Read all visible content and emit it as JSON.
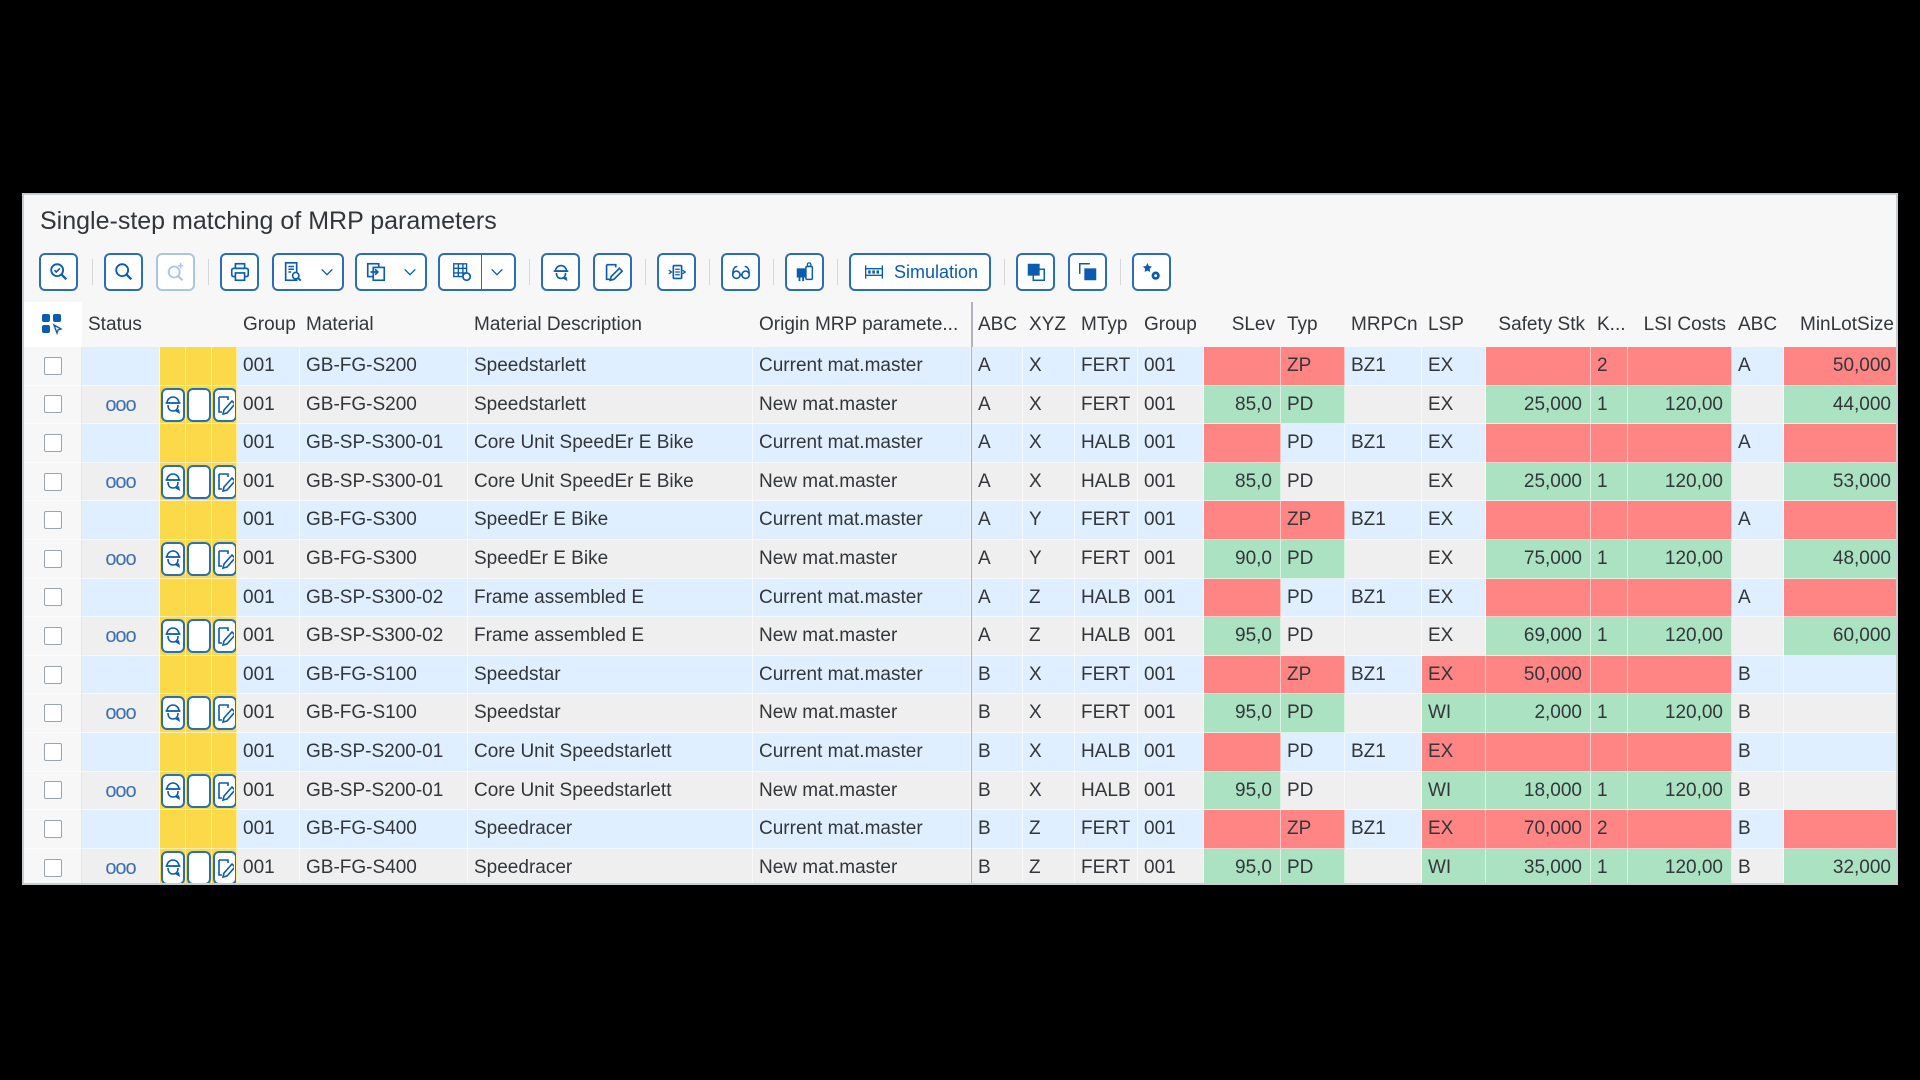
{
  "window": {
    "title": "Single-step matching of MRP parameters"
  },
  "toolbar": {
    "buttons": [
      {
        "name": "check-icon-button",
        "icon": "magnifier-check-icon",
        "disabled": false
      },
      {
        "name": "search-button",
        "icon": "search-icon",
        "disabled": false
      },
      {
        "name": "search-next-button",
        "icon": "search-plus-icon",
        "disabled": true
      },
      {
        "name": "print-button",
        "icon": "print-icon",
        "disabled": false
      },
      {
        "name": "print-preview-menu",
        "icon": "print-preview-icon",
        "disabled": false
      },
      {
        "name": "export-menu",
        "icon": "export-icon",
        "disabled": false
      },
      {
        "name": "layout-menu",
        "icon": "layout-settings-icon",
        "disabled": false
      },
      {
        "name": "worker-button",
        "icon": "worker-icon",
        "disabled": false
      },
      {
        "name": "edit-button",
        "icon": "edit-icon",
        "disabled": false
      },
      {
        "name": "transfer-button",
        "icon": "transfer-icon",
        "disabled": false
      },
      {
        "name": "display-button",
        "icon": "glasses-icon",
        "disabled": false
      },
      {
        "name": "assign-button",
        "icon": "assign-icon",
        "disabled": false
      },
      {
        "name": "copy-to-front-button",
        "icon": "bring-front-icon",
        "disabled": false
      },
      {
        "name": "copy-to-back-button",
        "icon": "send-back-icon",
        "disabled": false
      },
      {
        "name": "settings-button",
        "icon": "star-gear-icon",
        "disabled": false
      }
    ],
    "simulation_label": "Simulation"
  },
  "table": {
    "columns": [
      {
        "key": "sel",
        "label": ""
      },
      {
        "key": "status",
        "label": "Status"
      },
      {
        "key": "i1",
        "label": ""
      },
      {
        "key": "i2",
        "label": ""
      },
      {
        "key": "i3",
        "label": ""
      },
      {
        "key": "group",
        "label": "Group"
      },
      {
        "key": "material",
        "label": "Material"
      },
      {
        "key": "desc",
        "label": "Material Description"
      },
      {
        "key": "origin",
        "label": "Origin MRP paramete..."
      },
      {
        "key": "abc",
        "label": "ABC"
      },
      {
        "key": "xyz",
        "label": "XYZ"
      },
      {
        "key": "mtyp",
        "label": "MTyp"
      },
      {
        "key": "group2",
        "label": "Group"
      },
      {
        "key": "slev",
        "label": "SLev"
      },
      {
        "key": "typ",
        "label": "Typ"
      },
      {
        "key": "mrpcn",
        "label": "MRPCn"
      },
      {
        "key": "lsp",
        "label": "LSP"
      },
      {
        "key": "safety",
        "label": "Safety Stk"
      },
      {
        "key": "k",
        "label": "K..."
      },
      {
        "key": "lsi",
        "label": "LSI Costs"
      },
      {
        "key": "abc2",
        "label": "ABC"
      },
      {
        "key": "minlot",
        "label": "MinLotSize"
      }
    ],
    "status_icon": "ooo",
    "rows": [
      {
        "kind": "cur",
        "group": "001",
        "material": "GB-FG-S200",
        "desc": "Speedstarlett",
        "origin": "Current mat.master",
        "abc": "A",
        "xyz": "X",
        "mtyp": "FERT",
        "group2": "001",
        "slev": "",
        "typ": "ZP",
        "mrpcn": "BZ1",
        "lsp": "EX",
        "safety": "",
        "k": "2",
        "lsi": "",
        "abc2": "A",
        "minlot": "50,000",
        "colors": {
          "slev": "red",
          "typ": "red",
          "safety": "red",
          "k": "red",
          "lsi": "red",
          "minlot": "red"
        }
      },
      {
        "kind": "new",
        "group": "001",
        "material": "GB-FG-S200",
        "desc": "Speedstarlett",
        "origin": "New mat.master",
        "abc": "A",
        "xyz": "X",
        "mtyp": "FERT",
        "group2": "001",
        "slev": "85,0",
        "typ": "PD",
        "mrpcn": "",
        "lsp": "EX",
        "safety": "25,000",
        "k": "1",
        "lsi": "120,00",
        "abc2": "",
        "minlot": "44,000",
        "colors": {
          "slev": "green",
          "typ": "green",
          "safety": "green",
          "k": "green",
          "lsi": "green",
          "minlot": "green"
        }
      },
      {
        "kind": "cur",
        "group": "001",
        "material": "GB-SP-S300-01",
        "desc": "Core Unit SpeedEr E Bike",
        "origin": "Current mat.master",
        "abc": "A",
        "xyz": "X",
        "mtyp": "HALB",
        "group2": "001",
        "slev": "",
        "typ": "PD",
        "mrpcn": "BZ1",
        "lsp": "EX",
        "safety": "",
        "k": "",
        "lsi": "",
        "abc2": "A",
        "minlot": "",
        "colors": {
          "slev": "red",
          "safety": "red",
          "k": "red",
          "lsi": "red",
          "minlot": "red"
        }
      },
      {
        "kind": "new",
        "group": "001",
        "material": "GB-SP-S300-01",
        "desc": "Core Unit SpeedEr E Bike",
        "origin": "New mat.master",
        "abc": "A",
        "xyz": "X",
        "mtyp": "HALB",
        "group2": "001",
        "slev": "85,0",
        "typ": "PD",
        "mrpcn": "",
        "lsp": "EX",
        "safety": "25,000",
        "k": "1",
        "lsi": "120,00",
        "abc2": "",
        "minlot": "53,000",
        "colors": {
          "slev": "green",
          "safety": "green",
          "k": "green",
          "lsi": "green",
          "minlot": "green"
        }
      },
      {
        "kind": "cur",
        "group": "001",
        "material": "GB-FG-S300",
        "desc": "SpeedEr E Bike",
        "origin": "Current mat.master",
        "abc": "A",
        "xyz": "Y",
        "mtyp": "FERT",
        "group2": "001",
        "slev": "",
        "typ": "ZP",
        "mrpcn": "BZ1",
        "lsp": "EX",
        "safety": "",
        "k": "",
        "lsi": "",
        "abc2": "A",
        "minlot": "",
        "colors": {
          "slev": "red",
          "typ": "red",
          "safety": "red",
          "k": "red",
          "lsi": "red",
          "minlot": "red"
        }
      },
      {
        "kind": "new",
        "group": "001",
        "material": "GB-FG-S300",
        "desc": "SpeedEr E Bike",
        "origin": "New mat.master",
        "abc": "A",
        "xyz": "Y",
        "mtyp": "FERT",
        "group2": "001",
        "slev": "90,0",
        "typ": "PD",
        "mrpcn": "",
        "lsp": "EX",
        "safety": "75,000",
        "k": "1",
        "lsi": "120,00",
        "abc2": "",
        "minlot": "48,000",
        "colors": {
          "slev": "green",
          "typ": "green",
          "safety": "green",
          "k": "green",
          "lsi": "green",
          "minlot": "green"
        }
      },
      {
        "kind": "cur",
        "group": "001",
        "material": "GB-SP-S300-02",
        "desc": "Frame assembled E",
        "origin": "Current mat.master",
        "abc": "A",
        "xyz": "Z",
        "mtyp": "HALB",
        "group2": "001",
        "slev": "",
        "typ": "PD",
        "mrpcn": "BZ1",
        "lsp": "EX",
        "safety": "",
        "k": "",
        "lsi": "",
        "abc2": "A",
        "minlot": "",
        "colors": {
          "slev": "red",
          "safety": "red",
          "k": "red",
          "lsi": "red",
          "minlot": "red"
        }
      },
      {
        "kind": "new",
        "group": "001",
        "material": "GB-SP-S300-02",
        "desc": "Frame assembled E",
        "origin": "New mat.master",
        "abc": "A",
        "xyz": "Z",
        "mtyp": "HALB",
        "group2": "001",
        "slev": "95,0",
        "typ": "PD",
        "mrpcn": "",
        "lsp": "EX",
        "safety": "69,000",
        "k": "1",
        "lsi": "120,00",
        "abc2": "",
        "minlot": "60,000",
        "colors": {
          "slev": "green",
          "safety": "green",
          "k": "green",
          "lsi": "green",
          "minlot": "green"
        }
      },
      {
        "kind": "cur",
        "group": "001",
        "material": "GB-FG-S100",
        "desc": "Speedstar",
        "origin": "Current mat.master",
        "abc": "B",
        "xyz": "X",
        "mtyp": "FERT",
        "group2": "001",
        "slev": "",
        "typ": "ZP",
        "mrpcn": "BZ1",
        "lsp": "EX",
        "safety": "50,000",
        "k": "",
        "lsi": "",
        "abc2": "B",
        "minlot": "",
        "colors": {
          "slev": "red",
          "typ": "red",
          "lsp": "red",
          "safety": "red",
          "k": "red",
          "lsi": "red"
        }
      },
      {
        "kind": "new",
        "group": "001",
        "material": "GB-FG-S100",
        "desc": "Speedstar",
        "origin": "New mat.master",
        "abc": "B",
        "xyz": "X",
        "mtyp": "FERT",
        "group2": "001",
        "slev": "95,0",
        "typ": "PD",
        "mrpcn": "",
        "lsp": "WI",
        "safety": "2,000",
        "k": "1",
        "lsi": "120,00",
        "abc2": "B",
        "minlot": "",
        "colors": {
          "slev": "green",
          "typ": "green",
          "lsp": "green",
          "safety": "green",
          "k": "green",
          "lsi": "green"
        }
      },
      {
        "kind": "cur",
        "group": "001",
        "material": "GB-SP-S200-01",
        "desc": "Core Unit Speedstarlett",
        "origin": "Current mat.master",
        "abc": "B",
        "xyz": "X",
        "mtyp": "HALB",
        "group2": "001",
        "slev": "",
        "typ": "PD",
        "mrpcn": "BZ1",
        "lsp": "EX",
        "safety": "",
        "k": "",
        "lsi": "",
        "abc2": "B",
        "minlot": "",
        "colors": {
          "slev": "red",
          "lsp": "red",
          "safety": "red",
          "k": "red",
          "lsi": "red"
        }
      },
      {
        "kind": "new",
        "group": "001",
        "material": "GB-SP-S200-01",
        "desc": "Core Unit Speedstarlett",
        "origin": "New mat.master",
        "abc": "B",
        "xyz": "X",
        "mtyp": "HALB",
        "group2": "001",
        "slev": "95,0",
        "typ": "PD",
        "mrpcn": "",
        "lsp": "WI",
        "safety": "18,000",
        "k": "1",
        "lsi": "120,00",
        "abc2": "B",
        "minlot": "",
        "colors": {
          "slev": "green",
          "lsp": "green",
          "safety": "green",
          "k": "green",
          "lsi": "green"
        }
      },
      {
        "kind": "cur",
        "group": "001",
        "material": "GB-FG-S400",
        "desc": "Speedracer",
        "origin": "Current mat.master",
        "abc": "B",
        "xyz": "Z",
        "mtyp": "FERT",
        "group2": "001",
        "slev": "",
        "typ": "ZP",
        "mrpcn": "BZ1",
        "lsp": "EX",
        "safety": "70,000",
        "k": "2",
        "lsi": "",
        "abc2": "B",
        "minlot": "",
        "colors": {
          "slev": "red",
          "typ": "red",
          "lsp": "red",
          "safety": "red",
          "k": "red",
          "lsi": "red",
          "minlot": "red"
        }
      },
      {
        "kind": "new",
        "group": "001",
        "material": "GB-FG-S400",
        "desc": "Speedracer",
        "origin": "New mat.master",
        "abc": "B",
        "xyz": "Z",
        "mtyp": "FERT",
        "group2": "001",
        "slev": "95,0",
        "typ": "PD",
        "mrpcn": "",
        "lsp": "WI",
        "safety": "35,000",
        "k": "1",
        "lsi": "120,00",
        "abc2": "B",
        "minlot": "32,000",
        "colors": {
          "slev": "green",
          "typ": "green",
          "lsp": "green",
          "safety": "green",
          "k": "green",
          "lsi": "green",
          "minlot": "green"
        }
      }
    ]
  },
  "colors": {
    "accent": "#2a6eb8",
    "current_row_bg": "#e0efff",
    "new_row_bg": "#efefef",
    "mismatch_red": "#ff8585",
    "match_green": "#abe2c2",
    "status_yellow": "#fbd949"
  }
}
